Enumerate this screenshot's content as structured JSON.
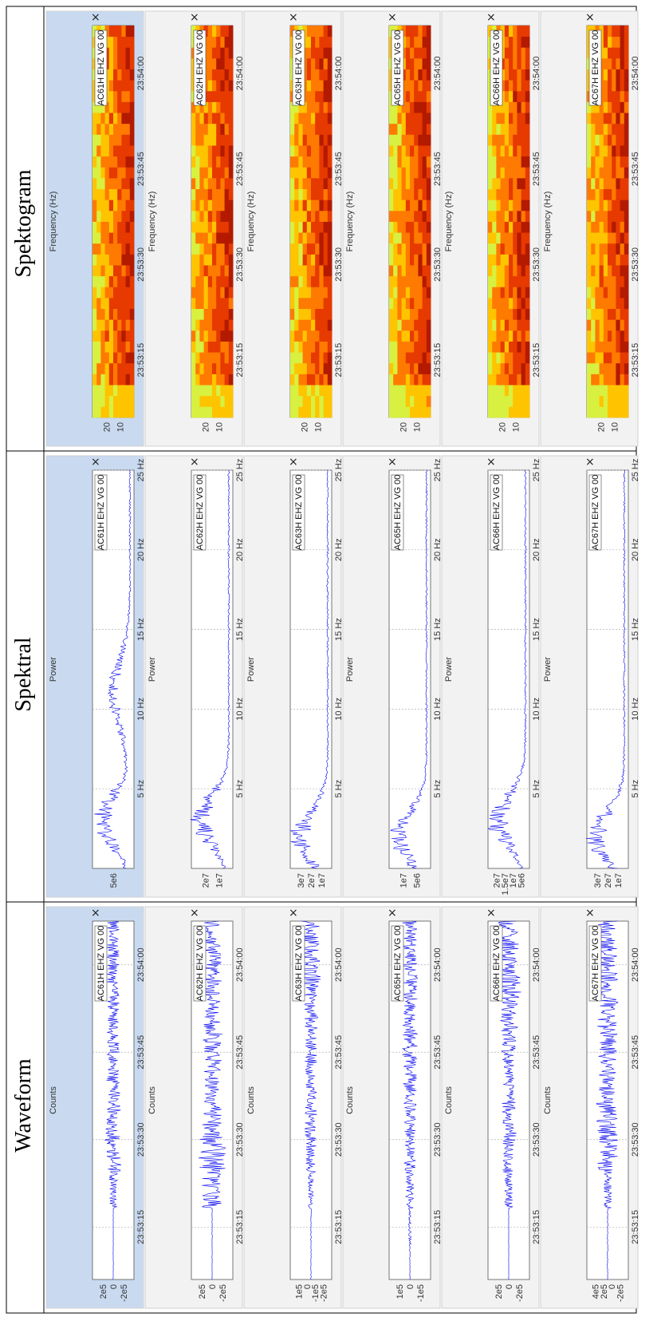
{
  "columns": [
    {
      "key": "waveform",
      "title": "Waveform",
      "axis_label": "Counts",
      "x_ticks": [
        "23:53:15",
        "23:53:30",
        "23:53:45",
        "23:54:00"
      ],
      "ticks_per_panel": [
        [
          "2e5",
          "0",
          "-2e5"
        ],
        [
          "2e5",
          "0",
          "-2e5"
        ],
        [
          "1e5",
          "0",
          "-1e5",
          "-2e5"
        ],
        [
          "1e5",
          "0",
          "-1e5"
        ],
        [
          "2e5",
          "0",
          "-2e5"
        ],
        [
          "4e5",
          "2e5",
          "0",
          "-2e5"
        ]
      ]
    },
    {
      "key": "spektral",
      "title": "Spektral",
      "axis_label": "Power",
      "x_ticks": [
        "5 Hz",
        "10 Hz",
        "15 Hz",
        "20 Hz",
        "25 Hz"
      ],
      "ticks_per_panel": [
        [
          "5e6"
        ],
        [
          "2e7",
          "1e7"
        ],
        [
          "3e7",
          "2e7",
          "1e7"
        ],
        [
          "1e7",
          "5e6"
        ],
        [
          "2e7",
          "1.5e7",
          "1e7",
          "5e6"
        ],
        [
          "3e7",
          "2e7",
          "1e7"
        ]
      ]
    },
    {
      "key": "spektogram",
      "title": "Spektogram",
      "axis_label": "Frequency (Hz)",
      "x_ticks": [
        "23:53:15",
        "23:53:30",
        "23:53:45",
        "23:54:00"
      ],
      "ticks_per_panel": [
        [
          "20",
          "10"
        ],
        [
          "20",
          "10"
        ],
        [
          "20",
          "10"
        ],
        [
          "20",
          "10"
        ],
        [
          "20",
          "10"
        ],
        [
          "20",
          "10"
        ]
      ]
    }
  ],
  "stations": [
    "AC61H EHZ VG 00",
    "AC62H EHZ VG 00",
    "AC63H EHZ VG 00",
    "AC65H EHZ VG 00",
    "AC66H EHZ VG 00",
    "AC67H EHZ VG 00"
  ],
  "close_glyph": "×",
  "selected_station_index": 0,
  "colors": {
    "trace": "#0000ee",
    "selected_bg": "#c9daf0",
    "panel_bg": "#f2f2f2",
    "plot_bg": "#ffffff",
    "grid": "#b0b0b0"
  },
  "chart_data": [
    {
      "type": "line",
      "title": "Waveform",
      "ylabel": "Counts",
      "xlabel": "",
      "x_ticks": [
        "23:53:15",
        "23:53:30",
        "23:53:45",
        "23:54:00"
      ],
      "series": [
        {
          "name": "AC61H EHZ VG 00",
          "envelope_counts": [
            2000,
            2000,
            60000,
            120000,
            110000,
            100000,
            100000,
            90000,
            90000,
            90000
          ]
        },
        {
          "name": "AC62H EHZ VG 00",
          "envelope_counts": [
            2000,
            3000,
            150000,
            200000,
            150000,
            120000,
            150000,
            120000,
            140000,
            120000
          ]
        },
        {
          "name": "AC63H EHZ VG 00",
          "envelope_counts": [
            3000,
            5000,
            40000,
            80000,
            90000,
            80000,
            90000,
            100000,
            140000,
            150000
          ]
        },
        {
          "name": "AC65H EHZ VG 00",
          "envelope_counts": [
            5000,
            20000,
            60000,
            80000,
            90000,
            100000,
            110000,
            110000,
            110000,
            110000
          ]
        },
        {
          "name": "AC66H EHZ VG 00",
          "envelope_counts": [
            1000,
            2000,
            60000,
            100000,
            120000,
            80000,
            110000,
            150000,
            180000,
            150000
          ]
        },
        {
          "name": "AC67H EHZ VG 00",
          "envelope_counts": [
            5000,
            5000,
            60000,
            150000,
            160000,
            130000,
            140000,
            150000,
            160000,
            150000
          ]
        }
      ]
    },
    {
      "type": "line",
      "title": "Spektral",
      "ylabel": "Power",
      "xlabel": "",
      "x_ticks": [
        "5 Hz",
        "10 Hz",
        "15 Hz",
        "20 Hz",
        "25 Hz"
      ],
      "xlim": [
        0,
        25
      ],
      "peaks": [
        {
          "name": "AC61H EHZ VG 00",
          "max_power": 8000000,
          "peak_hz": 3
        },
        {
          "name": "AC62H EHZ VG 00",
          "max_power": 20000000,
          "peak_hz": 3
        },
        {
          "name": "AC63H EHZ VG 00",
          "max_power": 17000000,
          "peak_hz": 2
        },
        {
          "name": "AC65H EHZ VG 00",
          "max_power": 10000000,
          "peak_hz": 2
        },
        {
          "name": "AC66H EHZ VG 00",
          "max_power": 25000000,
          "peak_hz": 3
        },
        {
          "name": "AC67H EHZ VG 00",
          "max_power": 13000000,
          "peak_hz": 2
        }
      ]
    },
    {
      "type": "heatmap",
      "title": "Spektogram",
      "ylabel": "Frequency (Hz)",
      "xlabel": "",
      "x_ticks": [
        "23:53:15",
        "23:53:30",
        "23:53:45",
        "23:54:00"
      ],
      "ylim": [
        0,
        25
      ],
      "stations": [
        "AC61H EHZ VG 00",
        "AC62H EHZ VG 00",
        "AC63H EHZ VG 00",
        "AC65H EHZ VG 00",
        "AC66H EHZ VG 00",
        "AC67H EHZ VG 00"
      ],
      "colormap": "hot"
    }
  ]
}
